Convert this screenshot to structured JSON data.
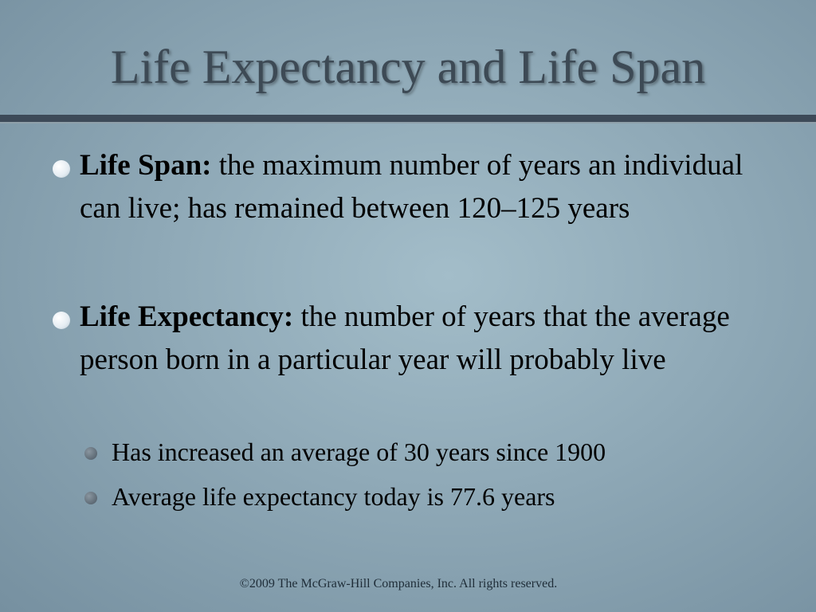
{
  "title": "Life Expectancy and Life Span",
  "bullets": [
    {
      "term": "Life Span:",
      "text": "the maximum number of years an individual can live; has remained between 120–125 years"
    },
    {
      "term": "Life Expectancy:",
      "text": "the number of years that the average person born in a particular year will probably live",
      "sub": [
        "Has increased an average of 30 years since 1900",
        "Average life expectancy today is 77.6 years"
      ]
    }
  ],
  "footer": "©2009 The McGraw-Hill Companies, Inc. All rights reserved."
}
